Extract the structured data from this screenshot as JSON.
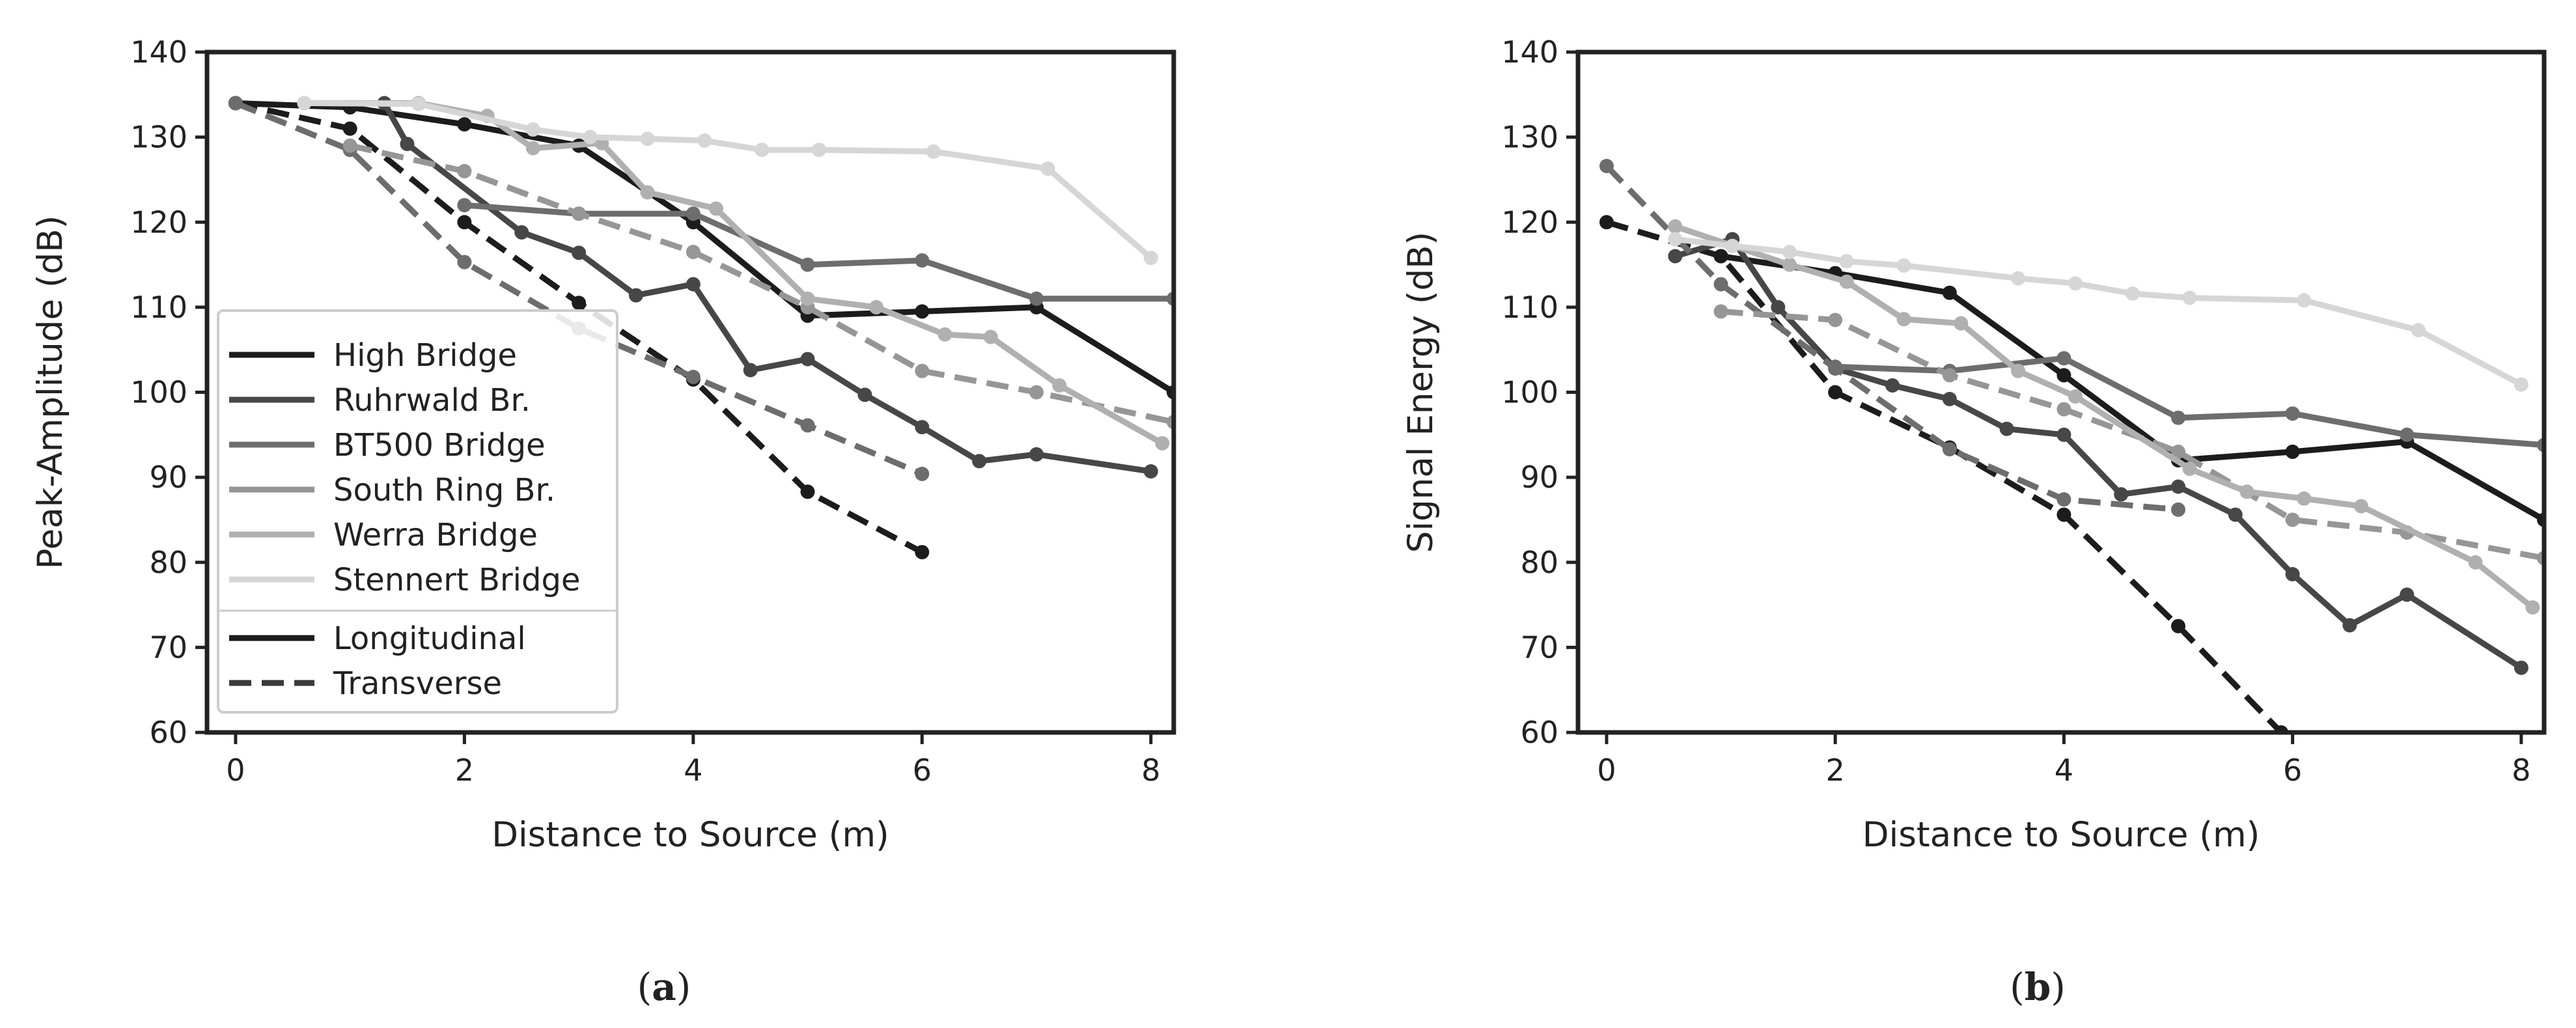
{
  "chart_data": [
    {
      "type": "line",
      "panel_label": "a",
      "caption_open": "(",
      "caption_close": ")",
      "xlabel": "Distance to Source (m)",
      "ylabel": "Peak-Amplitude (dB)",
      "xlim": [
        -0.25,
        8.2
      ],
      "ylim": [
        60,
        140
      ],
      "xticks": [
        0,
        2,
        4,
        6,
        8
      ],
      "yticks": [
        60,
        70,
        80,
        90,
        100,
        110,
        120,
        130,
        140
      ],
      "grid": false,
      "legend_position": "lower-left",
      "series": [
        {
          "name": "High Bridge",
          "orientation": "Longitudinal",
          "color": "#1c1c1c",
          "x": [
            0,
            1,
            2,
            3,
            4,
            5,
            6,
            7,
            8.2
          ],
          "y": [
            134,
            133.5,
            131.5,
            129,
            120,
            109,
            109.5,
            110,
            100
          ]
        },
        {
          "name": "High Bridge",
          "orientation": "Transverse",
          "color": "#1c1c1c",
          "x": [
            0,
            1,
            2,
            3,
            4,
            5,
            6
          ],
          "y": [
            134,
            131,
            120,
            110.5,
            101.5,
            88.3,
            81.2
          ]
        },
        {
          "name": "Ruhrwald Br.",
          "orientation": "Longitudinal",
          "color": "#474747",
          "x": [
            1.3,
            1.5,
            2.5,
            3,
            3.5,
            4,
            4.5,
            5,
            5.5,
            6,
            6.5,
            7,
            8
          ],
          "y": [
            134,
            129.2,
            118.8,
            116.4,
            111.4,
            112.7,
            102.6,
            103.9,
            99.7,
            95.9,
            91.9,
            92.7,
            90.7
          ]
        },
        {
          "name": "BT500 Bridge",
          "orientation": "Longitudinal",
          "color": "#6d6d6d",
          "x": [
            2,
            3,
            4,
            5,
            6,
            7,
            8.2
          ],
          "y": [
            122,
            121,
            121,
            115,
            115.5,
            111,
            111
          ]
        },
        {
          "name": "BT500 Bridge",
          "orientation": "Transverse",
          "color": "#6d6d6d",
          "x": [
            0,
            1,
            2,
            3,
            4,
            5,
            6
          ],
          "y": [
            134,
            128.5,
            115.3,
            107.5,
            101.8,
            96.1,
            90.4
          ]
        },
        {
          "name": "South Ring Br.",
          "orientation": "Transverse",
          "color": "#969696",
          "x": [
            1,
            2,
            3,
            4,
            5,
            6,
            7,
            8.2
          ],
          "y": [
            129,
            126,
            121,
            116.5,
            110,
            102.5,
            100,
            96.5
          ]
        },
        {
          "name": "Werra Bridge",
          "orientation": "Longitudinal",
          "color": "#b0b0b0",
          "x": [
            0.6,
            1.6,
            2.2,
            2.6,
            3.2,
            3.6,
            4.2,
            5,
            5.6,
            6.2,
            6.6,
            7.2,
            8.1
          ],
          "y": [
            134,
            134,
            132.5,
            128.7,
            129.3,
            123.5,
            121.6,
            111,
            110,
            106.8,
            106.5,
            100.8,
            94
          ]
        },
        {
          "name": "Stennert Bridge",
          "orientation": "Longitudinal",
          "color": "#d6d6d6",
          "x": [
            0.6,
            1.6,
            2.6,
            3.1,
            3.6,
            4.1,
            4.6,
            5.1,
            6.1,
            7.1,
            8
          ],
          "y": [
            134,
            133.9,
            130.9,
            130,
            129.8,
            129.6,
            128.5,
            128.5,
            128.3,
            126.3,
            115.8
          ]
        }
      ]
    },
    {
      "type": "line",
      "panel_label": "b",
      "caption_open": "(",
      "caption_close": ")",
      "xlabel": "Distance to Source (m)",
      "ylabel": "Signal Energy (dB)",
      "xlim": [
        -0.25,
        8.2
      ],
      "ylim": [
        60,
        140
      ],
      "xticks": [
        0,
        2,
        4,
        6,
        8
      ],
      "yticks": [
        60,
        70,
        80,
        90,
        100,
        110,
        120,
        130,
        140
      ],
      "grid": false,
      "series": [
        {
          "name": "High Bridge",
          "orientation": "Longitudinal",
          "color": "#1c1c1c",
          "x": [
            1,
            2,
            3,
            4,
            5,
            6,
            7,
            8.2
          ],
          "y": [
            116,
            114,
            111.7,
            102,
            92,
            93,
            94.2,
            85
          ]
        },
        {
          "name": "High Bridge",
          "orientation": "Transverse",
          "color": "#1c1c1c",
          "x": [
            0,
            1,
            2,
            3,
            4,
            5,
            5.9
          ],
          "y": [
            120,
            116,
            100,
            93.5,
            85.6,
            72.5,
            60
          ]
        },
        {
          "name": "Ruhrwald Br.",
          "orientation": "Longitudinal",
          "color": "#474747",
          "x": [
            0.6,
            1.1,
            1.5,
            2,
            2.5,
            3,
            3.5,
            4,
            4.5,
            5,
            5.5,
            6,
            6.5,
            7,
            8
          ],
          "y": [
            116,
            118,
            110,
            102.8,
            100.8,
            99.2,
            95.7,
            95,
            88,
            88.9,
            85.6,
            78.6,
            72.6,
            76.2,
            67.6
          ]
        },
        {
          "name": "BT500 Bridge",
          "orientation": "Longitudinal",
          "color": "#6d6d6d",
          "x": [
            2,
            3,
            4,
            5,
            6,
            7,
            8.2
          ],
          "y": [
            103,
            102.5,
            104,
            97,
            97.5,
            95,
            93.8
          ]
        },
        {
          "name": "BT500 Bridge",
          "orientation": "Transverse",
          "color": "#6d6d6d",
          "x": [
            0,
            1,
            2,
            3,
            4,
            5
          ],
          "y": [
            126.6,
            112.7,
            102.8,
            93.3,
            87.4,
            86.2
          ]
        },
        {
          "name": "South Ring Br.",
          "orientation": "Transverse",
          "color": "#969696",
          "x": [
            1,
            2,
            3,
            4,
            5,
            6,
            7,
            8.2
          ],
          "y": [
            109.5,
            108.5,
            102,
            98,
            93,
            85,
            83.5,
            80.5
          ]
        },
        {
          "name": "Werra Bridge",
          "orientation": "Longitudinal",
          "color": "#b0b0b0",
          "x": [
            0.6,
            1.6,
            2.1,
            2.6,
            3.1,
            3.6,
            4.1,
            5.1,
            5.6,
            6.1,
            6.6,
            7.6,
            8.1
          ],
          "y": [
            119.5,
            115,
            113,
            108.6,
            108.1,
            102.5,
            99.5,
            91,
            88.3,
            87.5,
            86.6,
            80,
            74.7
          ]
        },
        {
          "name": "Stennert Bridge",
          "orientation": "Longitudinal",
          "color": "#d6d6d6",
          "x": [
            0.6,
            1.1,
            1.6,
            2.1,
            2.6,
            3.6,
            4.1,
            4.6,
            5.1,
            6.1,
            7.1,
            8
          ],
          "y": [
            118,
            117.2,
            116.5,
            115.4,
            114.9,
            113.4,
            112.8,
            111.6,
            111.1,
            110.8,
            107.3,
            100.9
          ]
        }
      ]
    }
  ],
  "legend": {
    "bridges": [
      {
        "label": "High Bridge",
        "color": "#1c1c1c"
      },
      {
        "label": "Ruhrwald Br.",
        "color": "#474747"
      },
      {
        "label": "BT500 Bridge",
        "color": "#6d6d6d"
      },
      {
        "label": "South Ring Br.",
        "color": "#969696"
      },
      {
        "label": "Werra Bridge",
        "color": "#b0b0b0"
      },
      {
        "label": "Stennert Bridge",
        "color": "#d6d6d6"
      }
    ],
    "styles": [
      {
        "label": "Longitudinal",
        "dash": "solid",
        "color": "#1c1c1c"
      },
      {
        "label": "Transverse",
        "dash": "dashed",
        "color": "#3a3a3a"
      }
    ]
  }
}
